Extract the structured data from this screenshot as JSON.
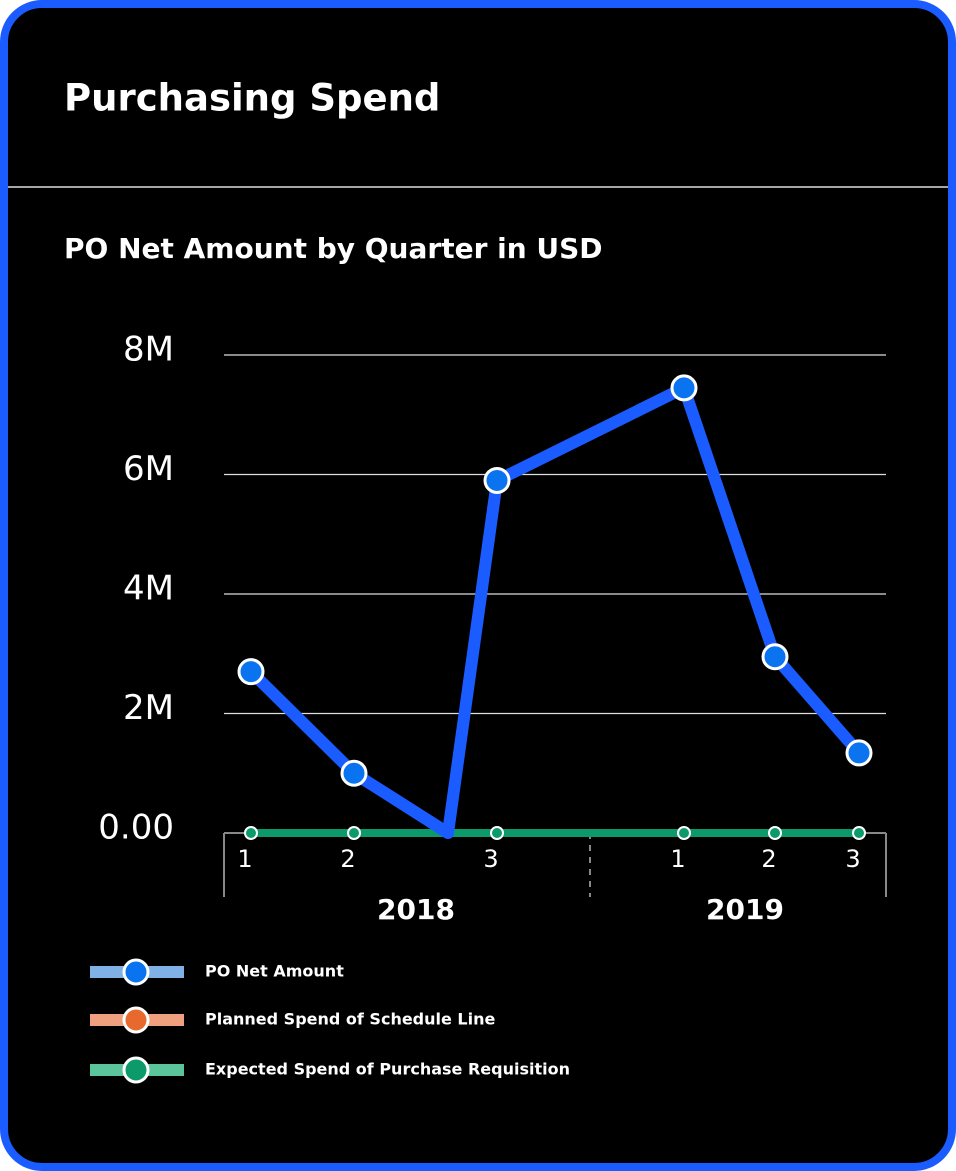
{
  "header": {
    "title": "Purchasing Spend"
  },
  "chart_data": {
    "type": "line",
    "title": "PO Net Amount by Quarter in USD",
    "categories": [
      "1",
      "2",
      null,
      "3",
      "1",
      "2",
      "3"
    ],
    "x_groups": [
      "2018",
      "2019"
    ],
    "series": [
      {
        "name": "PO Net Amount",
        "color": "#1a5cff",
        "marker_color": "#0a74f0",
        "legend_line_color": "#7fb0e6",
        "values": [
          2700000,
          1000000,
          0,
          5900000,
          7450000,
          2950000,
          1340000
        ]
      },
      {
        "name": "Planned Spend of Schedule Line",
        "color": "#e8692e",
        "marker_color": "#e8692e",
        "legend_line_color": "#f0a07e",
        "values": [
          null,
          null,
          null,
          null,
          null,
          null,
          null
        ]
      },
      {
        "name": "Expected Spend of Purchase Requisition",
        "color": "#0c9a6a",
        "marker_color": "#0c9a6a",
        "legend_line_color": "#5cc49a",
        "values": [
          0,
          0,
          0,
          0,
          0,
          0,
          0
        ]
      }
    ],
    "ylim": [
      0,
      8000000
    ],
    "yticks": [
      {
        "value": 0,
        "label": "0.00"
      },
      {
        "value": 2000000,
        "label": "2M"
      },
      {
        "value": 4000000,
        "label": "4M"
      },
      {
        "value": 6000000,
        "label": "6M"
      },
      {
        "value": 8000000,
        "label": "8M"
      }
    ],
    "grid": true
  }
}
